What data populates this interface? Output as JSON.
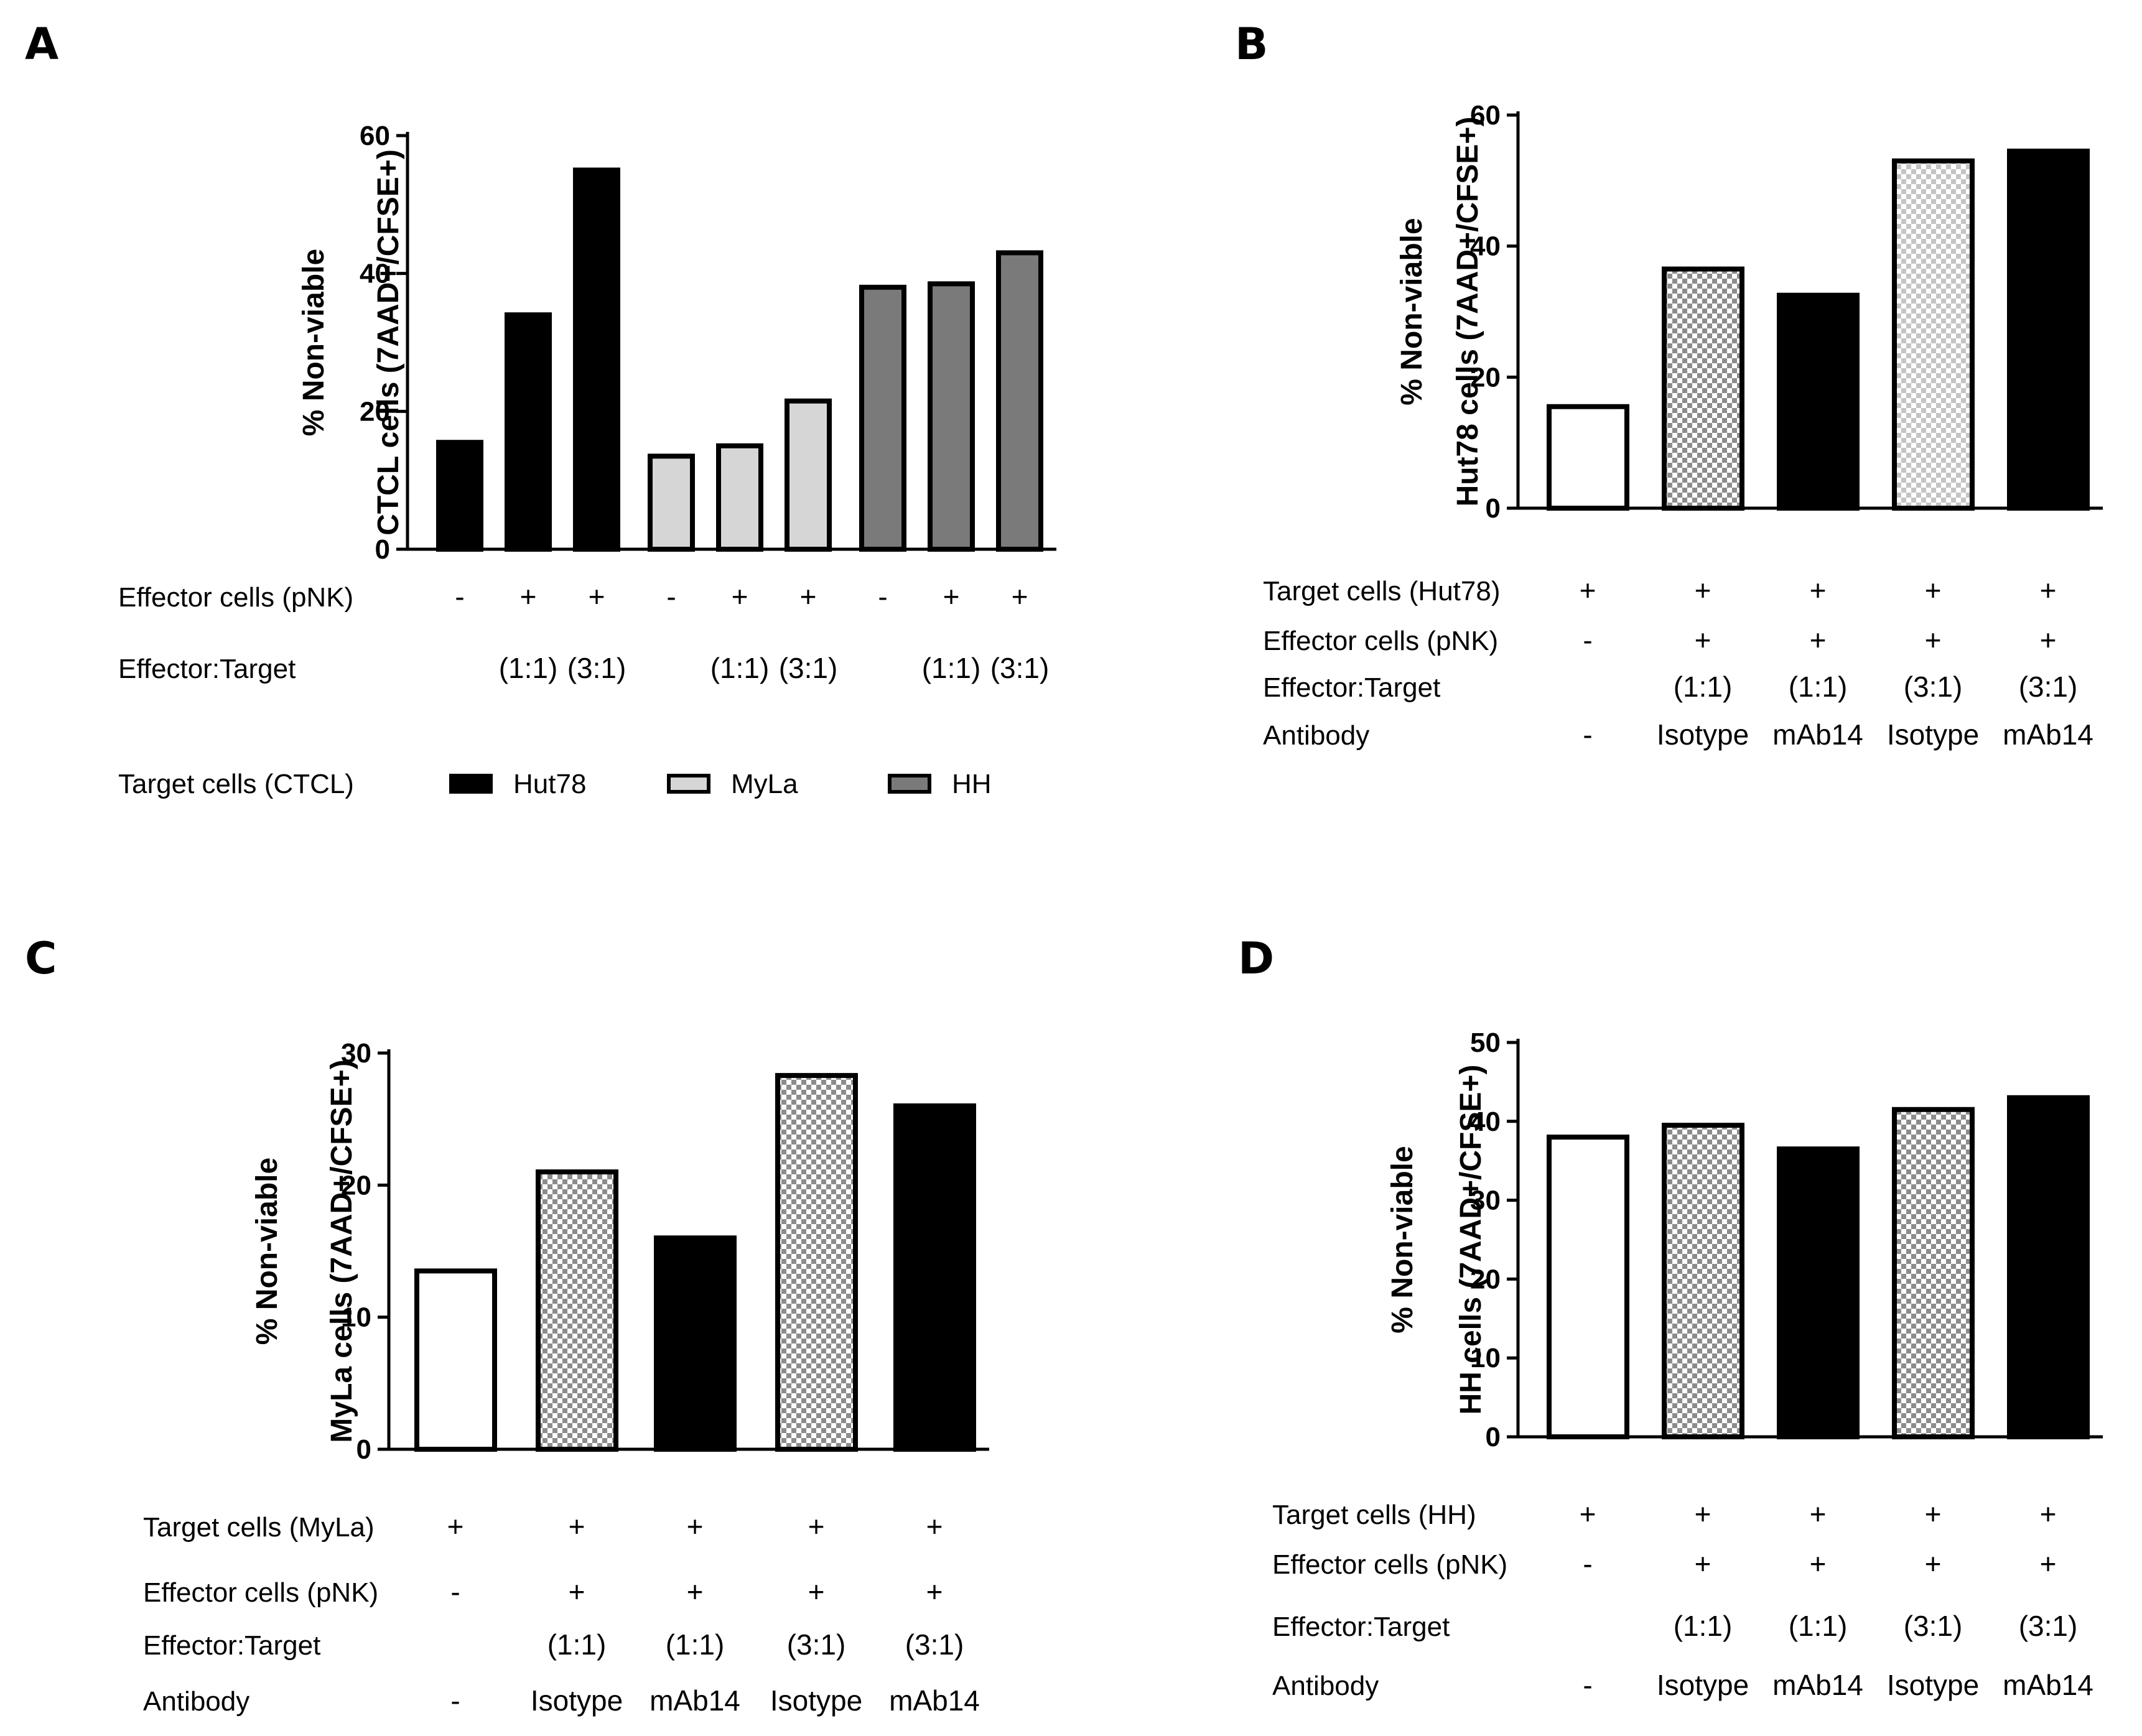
{
  "panels": [
    {
      "letter": "A",
      "ylabel_lines": [
        "% Non-viable",
        "CTCL cells (7AAD+/CFSE+)"
      ],
      "axis": {
        "max": 60,
        "ticks": [
          0,
          20,
          40,
          60
        ]
      },
      "bars": [
        {
          "value": 15.5,
          "fill": "black"
        },
        {
          "value": 34,
          "fill": "black"
        },
        {
          "value": 55,
          "fill": "black"
        },
        {
          "value": 13.5,
          "fill": "lightgray"
        },
        {
          "value": 15,
          "fill": "lightgray"
        },
        {
          "value": 21.5,
          "fill": "lightgray"
        },
        {
          "value": 38,
          "fill": "gray"
        },
        {
          "value": 38.5,
          "fill": "gray"
        },
        {
          "value": 43,
          "fill": "gray"
        }
      ],
      "rows": [
        {
          "label": "Effector cells (pNK)",
          "cells": [
            "-",
            "+",
            "+",
            "-",
            "+",
            "+",
            "-",
            "+",
            "+"
          ]
        },
        {
          "label": "Effector:Target",
          "cells": [
            "",
            "(1:1)",
            "(3:1)",
            "",
            "(1:1)",
            "(3:1)",
            "",
            "(1:1)",
            "(3:1)"
          ]
        }
      ],
      "legend": {
        "label": "Target cells (CTCL)",
        "entries": [
          {
            "name": "Hut78",
            "color": "#000000"
          },
          {
            "name": "MyLa",
            "color": "#d6d6d6"
          },
          {
            "name": "HH",
            "color": "#7a7a7a"
          }
        ]
      }
    },
    {
      "letter": "B",
      "ylabel_lines": [
        "% Non-viable",
        "Hut78 cells (7AAD+/CFSE+)"
      ],
      "axis": {
        "max": 60,
        "ticks": [
          0,
          20,
          40,
          60
        ]
      },
      "bars": [
        {
          "value": 15.5,
          "fill": "white"
        },
        {
          "value": 36.5,
          "fill": "checker"
        },
        {
          "value": 32.5,
          "fill": "black"
        },
        {
          "value": 53,
          "fill": "checkerlight"
        },
        {
          "value": 54.5,
          "fill": "black"
        }
      ],
      "rows": [
        {
          "label": "Target cells (Hut78)",
          "cells": [
            "+",
            "+",
            "+",
            "+",
            "+"
          ]
        },
        {
          "label": "Effector cells (pNK)",
          "cells": [
            "-",
            "+",
            "+",
            "+",
            "+"
          ]
        },
        {
          "label": "Effector:Target",
          "cells": [
            "",
            "(1:1)",
            "(1:1)",
            "(3:1)",
            "(3:1)"
          ]
        },
        {
          "label": "Antibody",
          "cells": [
            "-",
            "Isotype",
            "mAb14",
            "Isotype",
            "mAb14"
          ]
        }
      ]
    },
    {
      "letter": "C",
      "ylabel_lines": [
        "% Non-viable",
        "MyLa cells (7AAD+/CFSE+)"
      ],
      "axis": {
        "max": 30,
        "ticks": [
          0,
          10,
          20,
          30
        ]
      },
      "bars": [
        {
          "value": 13.5,
          "fill": "white"
        },
        {
          "value": 21,
          "fill": "checker"
        },
        {
          "value": 16,
          "fill": "black"
        },
        {
          "value": 28.3,
          "fill": "checker"
        },
        {
          "value": 26,
          "fill": "black"
        }
      ],
      "rows": [
        {
          "label": "Target cells (MyLa)",
          "cells": [
            "+",
            "+",
            "+",
            "+",
            "+"
          ]
        },
        {
          "label": "Effector cells (pNK)",
          "cells": [
            "-",
            "+",
            "+",
            "+",
            "+"
          ]
        },
        {
          "label": "Effector:Target",
          "cells": [
            "",
            "(1:1)",
            "(1:1)",
            "(3:1)",
            "(3:1)"
          ]
        },
        {
          "label": "Antibody",
          "cells": [
            "-",
            "Isotype",
            "mAb14",
            "Isotype",
            "mAb14"
          ]
        }
      ]
    },
    {
      "letter": "D",
      "ylabel_lines": [
        "% Non-viable",
        "HH cells (7AAD+/CFSE+)"
      ],
      "axis": {
        "max": 50,
        "ticks": [
          0,
          10,
          20,
          30,
          40,
          50
        ]
      },
      "bars": [
        {
          "value": 38,
          "fill": "white"
        },
        {
          "value": 39.5,
          "fill": "checker"
        },
        {
          "value": 36.5,
          "fill": "black"
        },
        {
          "value": 41.5,
          "fill": "checker"
        },
        {
          "value": 43,
          "fill": "black"
        }
      ],
      "rows": [
        {
          "label": "Target cells (HH)",
          "cells": [
            "+",
            "+",
            "+",
            "+",
            "+"
          ]
        },
        {
          "label": "Effector cells (pNK)",
          "cells": [
            "-",
            "+",
            "+",
            "+",
            "+"
          ]
        },
        {
          "label": "Effector:Target",
          "cells": [
            "",
            "(1:1)",
            "(1:1)",
            "(3:1)",
            "(3:1)"
          ]
        },
        {
          "label": "Antibody",
          "cells": [
            "-",
            "Isotype",
            "mAb14",
            "Isotype",
            "mAb14"
          ]
        }
      ]
    }
  ],
  "chart_data": [
    {
      "type": "bar",
      "panel": "A",
      "ylabel": "% Non-viable CTCL cells (7AAD+/CFSE+)",
      "ylim": [
        0,
        60
      ],
      "categories": [
        "Hut78 -",
        "Hut78 + (1:1)",
        "Hut78 + (3:1)",
        "MyLa -",
        "MyLa + (1:1)",
        "MyLa + (3:1)",
        "HH -",
        "HH + (1:1)",
        "HH + (3:1)"
      ],
      "series": [
        {
          "name": "Hut78",
          "values": [
            15.5,
            34,
            55,
            null,
            null,
            null,
            null,
            null,
            null
          ]
        },
        {
          "name": "MyLa",
          "values": [
            null,
            null,
            null,
            13.5,
            15,
            21.5,
            null,
            null,
            null
          ]
        },
        {
          "name": "HH",
          "values": [
            null,
            null,
            null,
            null,
            null,
            null,
            38,
            38.5,
            43
          ]
        }
      ]
    },
    {
      "type": "bar",
      "panel": "B",
      "ylabel": "% Non-viable Hut78 cells (7AAD+/CFSE+)",
      "ylim": [
        0,
        60
      ],
      "categories": [
        "-",
        "(1:1) Isotype",
        "(1:1) mAb14",
        "(3:1) Isotype",
        "(3:1) mAb14"
      ],
      "values": [
        15.5,
        36.5,
        32.5,
        53,
        54.5
      ]
    },
    {
      "type": "bar",
      "panel": "C",
      "ylabel": "% Non-viable MyLa cells (7AAD+/CFSE+)",
      "ylim": [
        0,
        30
      ],
      "categories": [
        "-",
        "(1:1) Isotype",
        "(1:1) mAb14",
        "(3:1) Isotype",
        "(3:1) mAb14"
      ],
      "values": [
        13.5,
        21,
        16,
        28.3,
        26
      ]
    },
    {
      "type": "bar",
      "panel": "D",
      "ylabel": "% Non-viable HH cells (7AAD+/CFSE+)",
      "ylim": [
        0,
        50
      ],
      "categories": [
        "-",
        "(1:1) Isotype",
        "(1:1) mAb14",
        "(3:1) Isotype",
        "(3:1) mAb14"
      ],
      "values": [
        38,
        39.5,
        36.5,
        41.5,
        43
      ]
    }
  ]
}
